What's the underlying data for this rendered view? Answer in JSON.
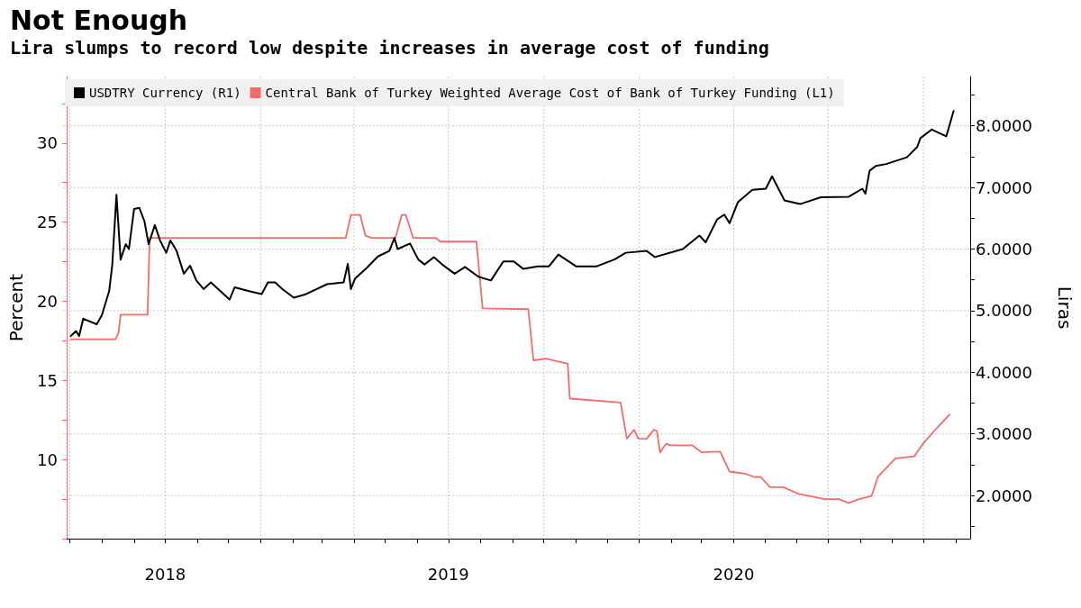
{
  "chart_data": {
    "type": "line",
    "title": "Not Enough",
    "subtitle": "Lira slumps to record low despite increases in average cost of funding",
    "ylabel": "Percent",
    "y2label": "Liras",
    "legend": "top left",
    "grid": true,
    "marker": "none",
    "xlim": [
      "2018-06-28",
      "2020-11-15"
    ],
    "xticks": [
      {
        "value": "2018-07",
        "label": null
      },
      {
        "value": "2018-08",
        "label": null
      },
      {
        "value": "2018-09",
        "label": null
      },
      {
        "value": "2018-10",
        "label": "2018"
      },
      {
        "value": "2018-11",
        "label": null
      },
      {
        "value": "2018-12",
        "label": null
      },
      {
        "value": "2019-01",
        "label": null
      },
      {
        "value": "2019-02",
        "label": null
      },
      {
        "value": "2019-03",
        "label": null
      },
      {
        "value": "2019-04",
        "label": null
      },
      {
        "value": "2019-05",
        "label": null
      },
      {
        "value": "2019-06",
        "label": null
      },
      {
        "value": "2019-07",
        "label": "2019"
      },
      {
        "value": "2019-08",
        "label": null
      },
      {
        "value": "2019-09",
        "label": null
      },
      {
        "value": "2019-10",
        "label": null
      },
      {
        "value": "2019-11",
        "label": null
      },
      {
        "value": "2019-12",
        "label": null
      },
      {
        "value": "2020-01",
        "label": null
      },
      {
        "value": "2020-02",
        "label": null
      },
      {
        "value": "2020-03",
        "label": null
      },
      {
        "value": "2020-04",
        "label": "2020"
      },
      {
        "value": "2020-05",
        "label": null
      },
      {
        "value": "2020-06",
        "label": null
      },
      {
        "value": "2020-07",
        "label": null
      },
      {
        "value": "2020-08",
        "label": null
      },
      {
        "value": "2020-09",
        "label": null
      },
      {
        "value": "2020-10",
        "label": null
      },
      {
        "value": "2020-11",
        "label": null
      }
    ],
    "ylim": [
      5,
      34.2
    ],
    "yticks": [
      {
        "value": 5,
        "label": null
      },
      {
        "value": 7.5,
        "label": null
      },
      10,
      {
        "value": 12.5,
        "label": null
      },
      15,
      {
        "value": 17.5,
        "label": null
      },
      20,
      {
        "value": 22.5,
        "label": null
      },
      25,
      {
        "value": 27.5,
        "label": null
      },
      30,
      {
        "value": 32.5,
        "label": null
      }
    ],
    "y2lim": [
      1.3,
      8.8
    ],
    "y2ticks": [
      {
        "value": 1.5,
        "label": null
      },
      {
        "value": 2,
        "label": "2.0000"
      },
      {
        "value": 2.5,
        "label": null
      },
      {
        "value": 3,
        "label": "3.0000"
      },
      {
        "value": 3.5,
        "label": null
      },
      {
        "value": 4,
        "label": "4.0000"
      },
      {
        "value": 4.5,
        "label": null
      },
      {
        "value": 5,
        "label": "5.0000"
      },
      {
        "value": 5.5,
        "label": null
      },
      {
        "value": 6,
        "label": "6.0000"
      },
      {
        "value": 6.5,
        "label": null
      },
      {
        "value": 7,
        "label": "7.0000"
      },
      {
        "value": 7.5,
        "label": null
      },
      {
        "value": 8,
        "label": "8.0000"
      },
      {
        "value": 8.5,
        "label": null
      }
    ],
    "series": [
      {
        "name": "USDTRY Currency (R1)",
        "color": "#000000",
        "axis": "y2",
        "x": [
          "2018-07-02",
          "2018-07-07",
          "2018-07-10",
          "2018-07-14",
          "2018-07-27",
          "2018-08-01",
          "2018-08-08",
          "2018-08-11",
          "2018-08-15",
          "2018-08-19",
          "2018-08-24",
          "2018-08-27",
          "2018-09-01",
          "2018-09-06",
          "2018-09-11",
          "2018-09-15",
          "2018-09-21",
          "2018-09-26",
          "2018-10-02",
          "2018-10-06",
          "2018-10-12",
          "2018-10-19",
          "2018-10-25",
          "2018-10-31",
          "2018-11-07",
          "2018-11-14",
          "2018-12-02",
          "2018-12-07",
          "2018-12-20",
          "2019-01-02",
          "2019-01-08",
          "2019-01-15",
          "2019-01-22",
          "2019-02-02",
          "2019-02-14",
          "2019-03-06",
          "2019-03-22",
          "2019-03-26",
          "2019-03-29",
          "2019-04-02",
          "2019-04-13",
          "2019-04-24",
          "2019-05-05",
          "2019-05-10",
          "2019-05-13",
          "2019-05-25",
          "2019-06-02",
          "2019-06-08",
          "2019-06-17",
          "2019-06-25",
          "2019-07-07",
          "2019-07-17",
          "2019-07-30",
          "2019-08-11",
          "2019-08-23",
          "2019-09-02",
          "2019-09-11",
          "2019-09-25",
          "2019-10-06",
          "2019-10-15",
          "2019-11-01",
          "2019-11-21",
          "2019-12-08",
          "2019-12-19",
          "2020-01-08",
          "2020-01-16",
          "2020-02-12",
          "2020-02-28",
          "2020-03-05",
          "2020-03-16",
          "2020-03-23",
          "2020-03-28",
          "2020-04-05",
          "2020-04-19",
          "2020-05-02",
          "2020-05-08",
          "2020-05-20",
          "2020-06-04",
          "2020-06-24",
          "2020-07-21",
          "2020-08-03",
          "2020-08-06",
          "2020-08-10",
          "2020-08-16",
          "2020-08-26",
          "2020-09-15",
          "2020-09-25",
          "2020-09-28",
          "2020-10-09",
          "2020-10-23",
          "2020-10-30"
        ],
        "values": [
          4.59,
          4.67,
          4.59,
          4.87,
          4.78,
          4.93,
          5.32,
          5.75,
          6.88,
          5.83,
          6.08,
          6.0,
          6.65,
          6.67,
          6.45,
          6.08,
          6.39,
          6.14,
          5.94,
          6.14,
          5.97,
          5.6,
          5.73,
          5.49,
          5.35,
          5.46,
          5.18,
          5.38,
          5.32,
          5.27,
          5.46,
          5.46,
          5.35,
          5.21,
          5.27,
          5.43,
          5.46,
          5.76,
          5.35,
          5.52,
          5.69,
          5.88,
          5.97,
          6.18,
          6.0,
          6.09,
          5.83,
          5.75,
          5.87,
          5.75,
          5.6,
          5.71,
          5.55,
          5.49,
          5.8,
          5.8,
          5.68,
          5.72,
          5.72,
          5.91,
          5.72,
          5.72,
          5.83,
          5.94,
          5.97,
          5.87,
          6.0,
          6.22,
          6.11,
          6.48,
          6.56,
          6.42,
          6.76,
          6.96,
          6.98,
          7.18,
          6.79,
          6.73,
          6.84,
          6.85,
          6.98,
          6.9,
          7.27,
          7.35,
          7.38,
          7.49,
          7.66,
          7.8,
          7.94,
          7.83,
          8.24
        ]
      },
      {
        "name": "Central Bank of Turkey Weighted Average Cost of Bank of Turkey Funding (L1)",
        "color": "#f26d66",
        "x": [
          "2018-07-02",
          "2018-08-14",
          "2018-08-17",
          "2018-08-19",
          "2018-09-14",
          "2018-09-16",
          "2019-03-24",
          "2019-03-29",
          "2019-04-07",
          "2019-04-12",
          "2019-04-18",
          "2019-05-11",
          "2019-05-17",
          "2019-05-21",
          "2019-05-28",
          "2019-06-19",
          "2019-06-23",
          "2019-07-28",
          "2019-08-03",
          "2019-09-16",
          "2019-09-21",
          "2019-10-03",
          "2019-10-24",
          "2019-10-26",
          "2019-12-14",
          "2019-12-20",
          "2019-12-27",
          "2019-12-31",
          "2020-01-08",
          "2020-01-15",
          "2020-01-18",
          "2020-01-21",
          "2020-01-27",
          "2020-01-31",
          "2020-02-21",
          "2020-03-01",
          "2020-03-19",
          "2020-03-28",
          "2020-04-12",
          "2020-04-21",
          "2020-04-27",
          "2020-05-06",
          "2020-05-19",
          "2020-06-03",
          "2020-06-28",
          "2020-07-11",
          "2020-07-21",
          "2020-07-31",
          "2020-08-12",
          "2020-08-18",
          "2020-09-04",
          "2020-09-22",
          "2020-10-01",
          "2020-10-14",
          "2020-10-26"
        ],
        "values": [
          17.6,
          17.6,
          18.0,
          19.15,
          19.15,
          24.0,
          24.0,
          25.45,
          25.45,
          24.15,
          24.0,
          24.0,
          25.45,
          25.45,
          24.0,
          24.0,
          23.77,
          23.77,
          19.55,
          19.5,
          16.27,
          16.37,
          16.05,
          13.85,
          13.6,
          11.32,
          11.88,
          11.32,
          11.3,
          11.88,
          11.8,
          10.45,
          11.0,
          10.9,
          10.9,
          10.46,
          10.5,
          9.24,
          9.1,
          8.9,
          8.9,
          8.25,
          8.25,
          7.82,
          7.5,
          7.5,
          7.26,
          7.5,
          7.7,
          8.9,
          10.07,
          10.2,
          11.04,
          12.0,
          12.84
        ]
      }
    ]
  }
}
